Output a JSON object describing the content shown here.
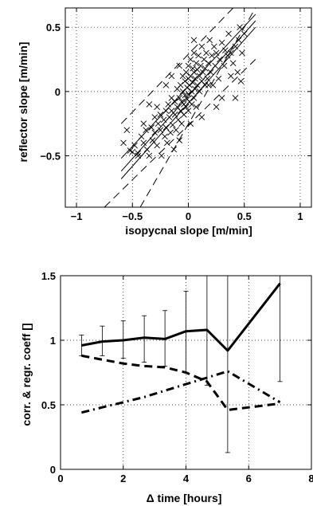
{
  "chart_data": [
    {
      "type": "scatter",
      "title": "",
      "xlabel": "isopycnal slope [m/min]",
      "ylabel": "reflector slope [m/min]",
      "xlim": [
        -1.1,
        1.1
      ],
      "ylim": [
        -0.9,
        0.65
      ],
      "xticks": [
        -1,
        -0.5,
        0,
        0.5,
        1
      ],
      "xtick_labels": [
        "−1",
        "−0.5",
        "0",
        "0.5",
        "1"
      ],
      "yticks": [
        -0.5,
        0,
        0.5
      ],
      "ytick_labels": [
        "−0.5",
        "0",
        "0.5"
      ],
      "grid": true,
      "marker": "x",
      "regression_lines": [
        {
          "style": "solid",
          "points": [
            [
              -0.6,
              -0.52
            ],
            [
              0.6,
              0.6
            ]
          ]
        },
        {
          "style": "solid",
          "points": [
            [
              -0.6,
              -0.62
            ],
            [
              0.6,
              0.55
            ]
          ]
        },
        {
          "style": "solid",
          "points": [
            [
              -0.6,
              -0.68
            ],
            [
              0.6,
              0.5
            ]
          ]
        },
        {
          "style": "dashed",
          "points": [
            [
              -0.43,
              -0.9
            ],
            [
              0.6,
              0.65
            ]
          ]
        },
        {
          "style": "dashed",
          "points": [
            [
              -0.75,
              -0.9
            ],
            [
              0.6,
              0.25
            ]
          ]
        },
        {
          "style": "dashed",
          "points": [
            [
              -0.6,
              -0.25
            ],
            [
              0.4,
              0.65
            ]
          ]
        }
      ],
      "points": [
        [
          -0.5,
          -0.47
        ],
        [
          -0.48,
          -0.42
        ],
        [
          -0.45,
          -0.5
        ],
        [
          -0.42,
          -0.35
        ],
        [
          -0.4,
          -0.4
        ],
        [
          -0.38,
          -0.3
        ],
        [
          -0.37,
          -0.45
        ],
        [
          -0.35,
          -0.5
        ],
        [
          -0.33,
          -0.28
        ],
        [
          -0.32,
          -0.38
        ],
        [
          -0.3,
          -0.2
        ],
        [
          -0.3,
          -0.32
        ],
        [
          -0.28,
          -0.42
        ],
        [
          -0.27,
          -0.25
        ],
        [
          -0.25,
          -0.3
        ],
        [
          -0.25,
          -0.18
        ],
        [
          -0.24,
          -0.5
        ],
        [
          -0.22,
          -0.22
        ],
        [
          -0.21,
          -0.35
        ],
        [
          -0.2,
          -0.15
        ],
        [
          -0.2,
          -0.28
        ],
        [
          -0.19,
          -0.4
        ],
        [
          -0.18,
          -0.1
        ],
        [
          -0.17,
          -0.2
        ],
        [
          -0.16,
          -0.32
        ],
        [
          -0.15,
          -0.05
        ],
        [
          -0.15,
          -0.15
        ],
        [
          -0.14,
          -0.26
        ],
        [
          -0.13,
          -0.45
        ],
        [
          -0.12,
          -0.08
        ],
        [
          -0.12,
          -0.18
        ],
        [
          -0.11,
          -0.3
        ],
        [
          -0.1,
          0.02
        ],
        [
          -0.1,
          -0.12
        ],
        [
          -0.09,
          -0.22
        ],
        [
          -0.08,
          -0.05
        ],
        [
          -0.08,
          -0.38
        ],
        [
          -0.07,
          0.05
        ],
        [
          -0.07,
          -0.15
        ],
        [
          -0.06,
          -0.08
        ],
        [
          -0.06,
          -0.25
        ],
        [
          -0.05,
          0.0
        ],
        [
          -0.05,
          0.12
        ],
        [
          -0.04,
          -0.1
        ],
        [
          -0.04,
          -0.18
        ],
        [
          -0.03,
          0.08
        ],
        [
          -0.03,
          -0.03
        ],
        [
          -0.02,
          0.15
        ],
        [
          -0.02,
          -0.12
        ],
        [
          -0.01,
          0.03
        ],
        [
          -0.01,
          -0.06
        ],
        [
          0.0,
          0.2
        ],
        [
          0.0,
          0.1
        ],
        [
          0.0,
          -0.02
        ],
        [
          0.0,
          -0.15
        ],
        [
          0.01,
          0.05
        ],
        [
          0.01,
          -0.08
        ],
        [
          0.02,
          0.25
        ],
        [
          0.02,
          0.12
        ],
        [
          0.03,
          0.0
        ],
        [
          0.03,
          -0.1
        ],
        [
          0.04,
          0.18
        ],
        [
          0.04,
          0.07
        ],
        [
          0.05,
          0.3
        ],
        [
          0.05,
          0.15
        ],
        [
          0.05,
          -0.05
        ],
        [
          0.06,
          0.1
        ],
        [
          0.06,
          0.02
        ],
        [
          0.07,
          0.22
        ],
        [
          0.07,
          -0.12
        ],
        [
          0.08,
          0.05
        ],
        [
          0.08,
          0.17
        ],
        [
          0.09,
          0.28
        ],
        [
          0.1,
          0.12
        ],
        [
          0.1,
          0.0
        ],
        [
          0.11,
          0.2
        ],
        [
          0.12,
          0.35
        ],
        [
          0.12,
          0.08
        ],
        [
          0.13,
          0.15
        ],
        [
          0.14,
          0.25
        ],
        [
          0.15,
          0.05
        ],
        [
          0.15,
          0.18
        ],
        [
          0.16,
          0.3
        ],
        [
          0.17,
          0.1
        ],
        [
          0.18,
          0.22
        ],
        [
          0.19,
          0.4
        ],
        [
          0.2,
          0.15
        ],
        [
          0.21,
          0.28
        ],
        [
          0.22,
          0.05
        ],
        [
          0.23,
          0.35
        ],
        [
          0.24,
          0.2
        ],
        [
          0.25,
          0.3
        ],
        [
          0.27,
          0.1
        ],
        [
          0.28,
          0.25
        ],
        [
          0.3,
          0.38
        ],
        [
          0.32,
          0.2
        ],
        [
          0.33,
          0.32
        ],
        [
          0.35,
          0.28
        ],
        [
          0.36,
          0.45
        ],
        [
          0.38,
          0.3
        ],
        [
          0.4,
          0.22
        ],
        [
          0.42,
          0.35
        ],
        [
          0.44,
          0.15
        ],
        [
          0.45,
          0.4
        ],
        [
          0.46,
          0.5
        ],
        [
          0.47,
          0.08
        ],
        [
          0.48,
          0.3
        ],
        [
          0.5,
          0.45
        ],
        [
          0.42,
          -0.05
        ],
        [
          0.3,
          -0.05
        ],
        [
          -0.2,
          0.05
        ],
        [
          -0.35,
          -0.1
        ],
        [
          -0.55,
          -0.3
        ],
        [
          -0.58,
          -0.4
        ],
        [
          0.25,
          -0.12
        ],
        [
          0.12,
          -0.2
        ],
        [
          -0.15,
          0.12
        ],
        [
          0.05,
          0.4
        ],
        [
          -0.08,
          0.2
        ],
        [
          -0.28,
          -0.12
        ],
        [
          -0.4,
          -0.25
        ],
        [
          0.38,
          0.12
        ],
        [
          0.18,
          0.05
        ],
        [
          0.02,
          -0.25
        ],
        [
          -0.45,
          -0.48
        ],
        [
          -0.52,
          -0.46
        ]
      ]
    },
    {
      "type": "line",
      "title": "",
      "xlabel": "Δ time [hours]",
      "ylabel": "corr. & regr. coeff []",
      "xlim": [
        0,
        8
      ],
      "ylim": [
        0,
        1.5
      ],
      "xticks": [
        0,
        2,
        4,
        6,
        8
      ],
      "xtick_labels": [
        "0",
        "2",
        "4",
        "6",
        "8"
      ],
      "yticks": [
        0,
        0.5,
        1,
        1.5
      ],
      "ytick_labels": [
        "0",
        "0.5",
        "1",
        "1.5"
      ],
      "grid": true,
      "series": [
        {
          "style": "solid",
          "x": [
            0.67,
            1.33,
            2.0,
            2.67,
            3.33,
            4.0,
            4.67,
            5.33,
            7.0
          ],
          "values": [
            0.96,
            0.99,
            1.0,
            1.02,
            1.01,
            1.07,
            1.08,
            0.92,
            1.44
          ],
          "error_low": [
            0.88,
            0.88,
            0.86,
            0.83,
            0.8,
            0.75,
            0.65,
            0.13,
            0.68
          ],
          "error_high": [
            1.04,
            1.11,
            1.15,
            1.19,
            1.23,
            1.38,
            1.5,
            1.5,
            1.5
          ]
        },
        {
          "style": "dashed",
          "x": [
            0.67,
            1.33,
            2.0,
            2.67,
            3.33,
            4.0,
            4.67,
            5.33,
            7.0
          ],
          "values": [
            0.88,
            0.85,
            0.82,
            0.8,
            0.79,
            0.75,
            0.68,
            0.46,
            0.51
          ]
        },
        {
          "style": "dashdot",
          "x": [
            0.67,
            1.33,
            2.0,
            2.67,
            3.33,
            4.0,
            4.67,
            5.33,
            7.0
          ],
          "values": [
            0.44,
            0.48,
            0.52,
            0.56,
            0.61,
            0.66,
            0.71,
            0.76,
            0.52
          ]
        }
      ]
    }
  ]
}
